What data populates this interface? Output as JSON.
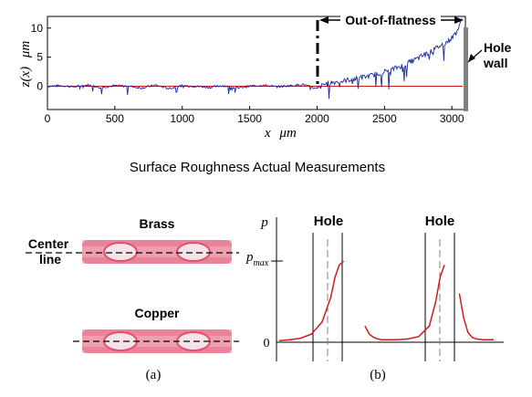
{
  "chart_data": [
    {
      "type": "line",
      "xlabel_var": "x",
      "xlabel_unit": "μm",
      "ylabel_var": "z(x)",
      "ylabel_unit": "μm",
      "xlim": [
        0,
        3100
      ],
      "ylim": [
        -4,
        12
      ],
      "x_ticks": [
        "0",
        "500",
        "1000",
        "1500",
        "2000",
        "2500",
        "3000"
      ],
      "y_ticks": [
        "0",
        "5",
        "10"
      ],
      "grid": false,
      "series": [
        {
          "color": "#1a2a9c",
          "x": [
            0,
            100,
            200,
            300,
            400,
            500,
            600,
            700,
            800,
            900,
            1000,
            1100,
            1200,
            1300,
            1400,
            1500,
            1600,
            1700,
            1800,
            1900,
            2000,
            2050,
            2100,
            2150,
            2200,
            2250,
            2300,
            2350,
            2400,
            2450,
            2500,
            2550,
            2600,
            2650,
            2700,
            2750,
            2800,
            2850,
            2900,
            2950,
            3000,
            3030,
            3060,
            3080
          ],
          "y": [
            0,
            0.1,
            -0.1,
            0.2,
            -0.2,
            0.1,
            0,
            -0.3,
            0.2,
            -0.4,
            0.1,
            0,
            -0.2,
            0.1,
            -0.3,
            0,
            0.2,
            -0.1,
            0.1,
            0.3,
            -0.5,
            0.3,
            0.6,
            0.8,
            0.9,
            1.2,
            1.3,
            1.6,
            1.8,
            2.2,
            2.5,
            2.8,
            3.3,
            3.7,
            4.3,
            4.8,
            5.5,
            6.0,
            6.8,
            7.4,
            8.3,
            9.2,
            10.5,
            12
          ]
        },
        {
          "color": "#d11b1b",
          "x": [
            0,
            3080
          ],
          "y": [
            0,
            0
          ]
        }
      ],
      "annotations": {
        "out_of_flatness": "Out-of-flatness",
        "hole_wall": "Hole\nwall",
        "flatness_start_x": 2000,
        "hole_wall_x": 3080
      }
    },
    {
      "type": "line",
      "panel_label": "(b)",
      "ylabel": "p",
      "y_ticks": [
        "0"
      ],
      "pmax_label": "p",
      "pmax_sub": "max",
      "hole_labels": [
        "Hole",
        "Hole"
      ],
      "x": [
        0,
        5,
        10,
        15,
        20,
        24,
        26,
        28,
        30,
        32,
        34,
        37,
        38,
        40,
        42,
        44,
        46,
        48,
        50,
        55,
        60,
        65,
        70,
        73,
        75,
        77,
        79,
        80,
        83,
        84,
        86,
        88,
        90,
        92,
        95,
        100
      ],
      "y": [
        0.02,
        0.03,
        0.05,
        0.1,
        0.25,
        0.55,
        0.8,
        0.95,
        1.0,
        0.98,
        0.9,
        0.6,
        0.4,
        0.2,
        0.1,
        0.06,
        0.04,
        0.03,
        0.03,
        0.03,
        0.04,
        0.07,
        0.2,
        0.5,
        0.8,
        0.95,
        1.0,
        1.0,
        0.92,
        0.6,
        0.3,
        0.12,
        0.06,
        0.04,
        0.03,
        0.03
      ]
    }
  ],
  "figure": {
    "caption": "Surface Roughness Actual Measurements",
    "panel_a_label": "(a)",
    "samples": [
      {
        "name": "Brass"
      },
      {
        "name": "Copper"
      }
    ],
    "center_line_label": "Center\nline",
    "sample_color": "#e0506e"
  }
}
